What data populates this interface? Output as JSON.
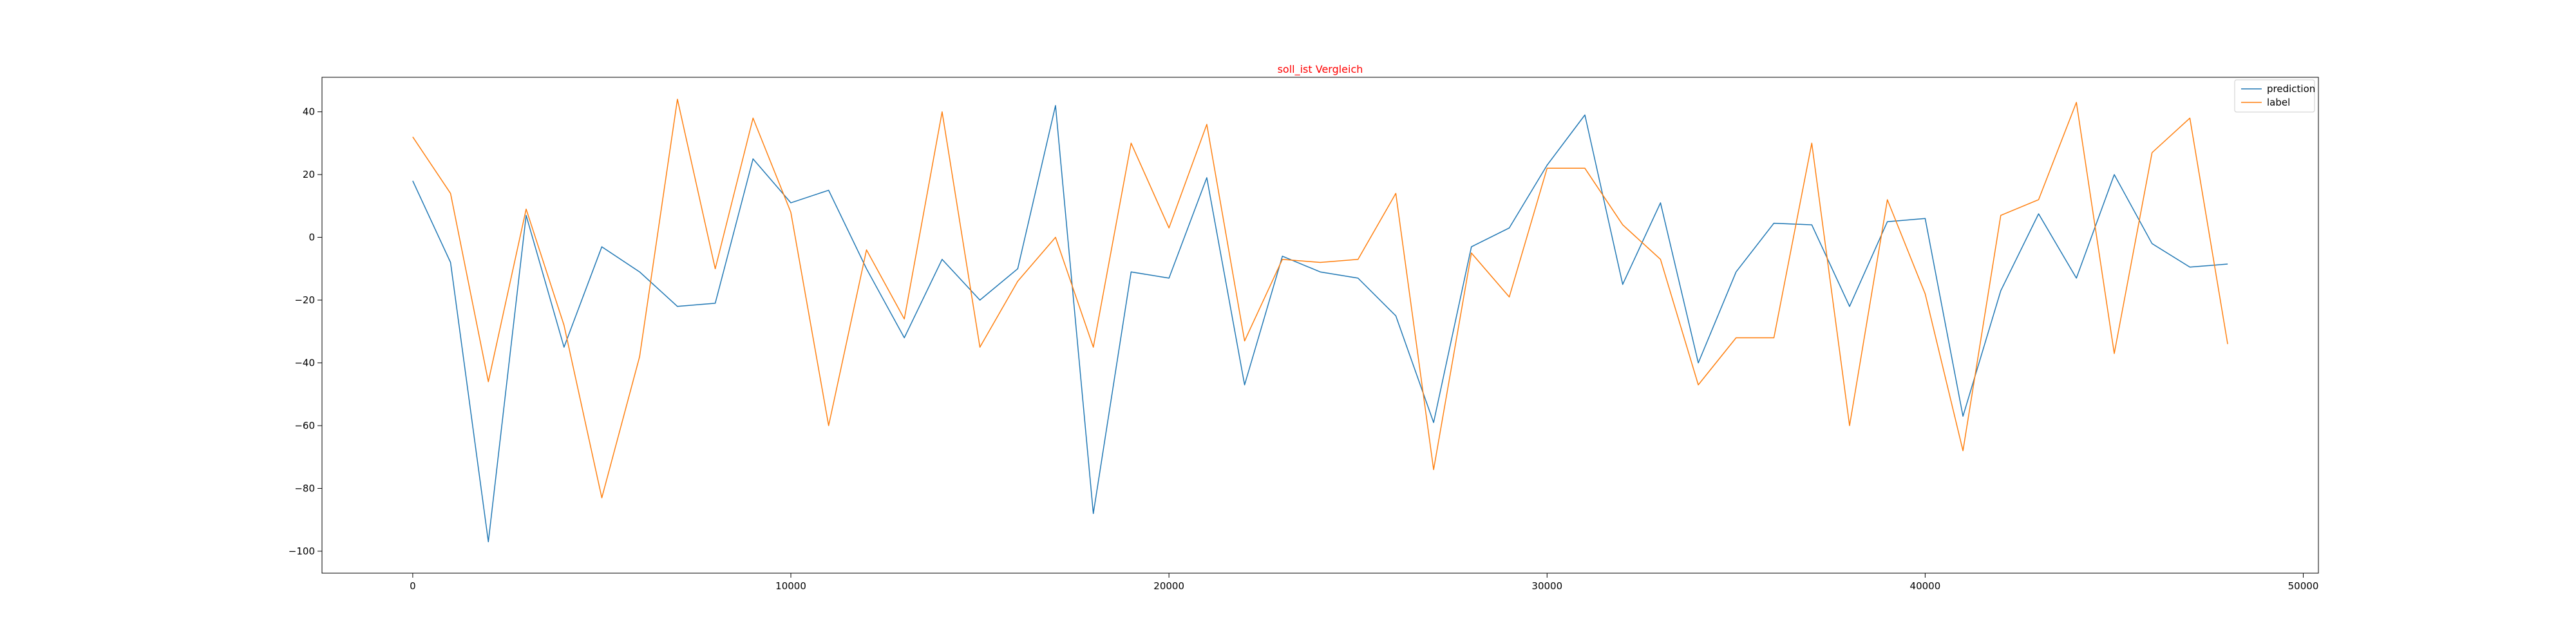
{
  "chart_data": {
    "type": "line",
    "title": "soll_ist Vergleich",
    "xlabel": "",
    "ylabel": "",
    "xlim": [
      -2400,
      50400
    ],
    "ylim": [
      -107,
      51
    ],
    "x_ticks": [
      0,
      10000,
      20000,
      30000,
      40000,
      50000
    ],
    "y_ticks": [
      -100,
      -80,
      -60,
      -40,
      -20,
      0,
      20,
      40
    ],
    "grid": false,
    "legend_position": "top-right",
    "x": [
      0,
      1000,
      2000,
      3000,
      4000,
      5000,
      6000,
      7000,
      8000,
      9000,
      10000,
      11000,
      12000,
      13000,
      14000,
      15000,
      16000,
      17000,
      18000,
      19000,
      20000,
      21000,
      22000,
      23000,
      24000,
      25000,
      26000,
      27000,
      28000,
      29000,
      30000,
      31000,
      32000,
      33000,
      34000,
      35000,
      36000,
      37000,
      38000,
      39000,
      40000,
      41000,
      42000,
      43000,
      44000,
      45000,
      46000,
      47000,
      48000
    ],
    "series": [
      {
        "name": "prediction",
        "color": "#1f77b4",
        "values": [
          18,
          -8,
          -97,
          7,
          -35,
          -3,
          -11,
          -22,
          -21,
          25,
          11,
          15,
          -10,
          -32,
          -7,
          -20,
          -10,
          42,
          -88,
          -11,
          -13,
          19,
          -47,
          -6,
          -11,
          -13,
          -25,
          -59,
          -3,
          3,
          23,
          39,
          -15,
          11,
          -40,
          -11,
          4.5,
          4,
          -22,
          5,
          6,
          -57,
          -17,
          7.5,
          -13,
          20,
          -2,
          -9.5,
          -8.5
        ]
      },
      {
        "name": "label",
        "color": "#ff7f0e",
        "values": [
          32,
          14,
          -46,
          9,
          -28,
          -83,
          -38,
          44,
          -10,
          38,
          8,
          -60,
          -4,
          -26,
          40,
          -35,
          -14,
          0,
          -35,
          30,
          3,
          36,
          -33,
          -7,
          -8,
          -7,
          14,
          -74,
          -5,
          -19,
          22,
          22,
          4,
          -7,
          -47,
          -32,
          -32,
          30,
          -60,
          12,
          -18,
          -68,
          7,
          12,
          43,
          -37,
          27,
          38,
          -34
        ]
      }
    ]
  }
}
